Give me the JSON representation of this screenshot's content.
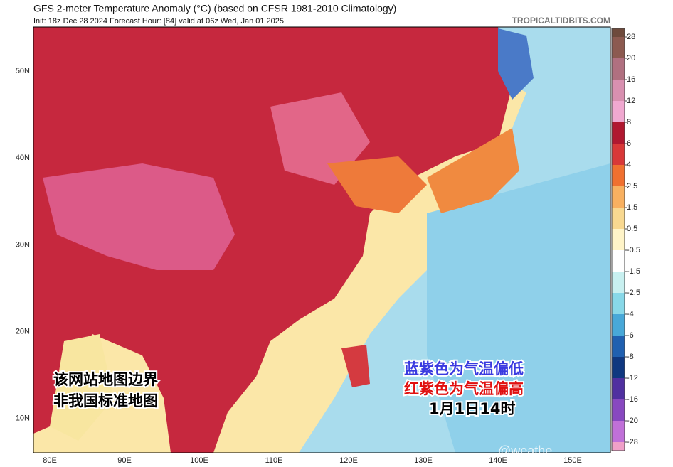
{
  "header": {
    "title": "GFS 2-meter Temperature Anomaly (°C) (based on CFSR 1981-2010 Climatology)",
    "subtitle": "Init: 18z Dec 28 2024   Forecast Hour: [84]   valid at 06z Wed, Jan 01 2025",
    "source": "TROPICALTIDBITS.COM"
  },
  "map": {
    "lat_labels": [
      "50N",
      "40N",
      "30N",
      "20N",
      "10N"
    ],
    "lon_labels": [
      "80E",
      "90E",
      "100E",
      "110E",
      "120E",
      "130E",
      "140E",
      "150E"
    ],
    "colorbar": {
      "ticks": [
        28,
        20,
        16,
        12,
        8,
        6,
        4,
        2.5,
        1.5,
        0.5,
        -0.5,
        -1.5,
        -2.5,
        -4,
        -6,
        -8,
        -12,
        -16,
        -20,
        -28
      ],
      "colors": [
        "#6e4a3c",
        "#8c5a50",
        "#b07080",
        "#d890b0",
        "#f0a8d0",
        "#b01830",
        "#d83838",
        "#f07030",
        "#f8b060",
        "#f8d890",
        "#fff4c8",
        "#ffffff",
        "#c8f0f0",
        "#88d8e8",
        "#48a8d8",
        "#2060b0",
        "#103880",
        "#5030a0",
        "#8848c0",
        "#c070d8",
        "#f0a0c8"
      ]
    }
  },
  "annotations": {
    "disclaimer": [
      "该网站地图边界",
      "非我国标准地图"
    ],
    "cold_note": "蓝紫色为气温偏低",
    "warm_note": "红紫色为气温偏高",
    "time_note": "1月1日14时",
    "watermark": "@weathe"
  }
}
